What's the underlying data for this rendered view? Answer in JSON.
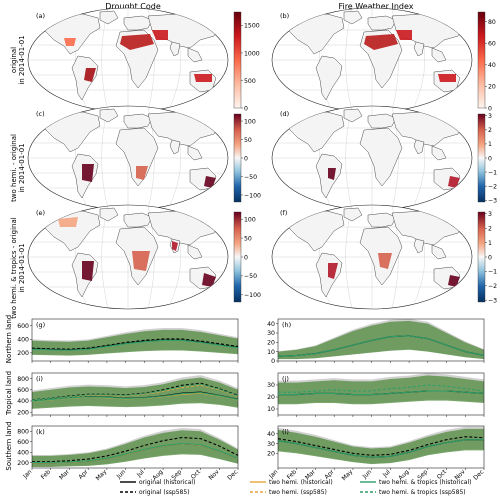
{
  "columns": [
    "Drought Code",
    "Fire Weather Index"
  ],
  "row_labels": [
    [
      "original",
      "in 2014-01-01"
    ],
    [
      "two hemi. - original",
      "in 2014-01-01"
    ],
    [
      "two hemi. & tropics - original",
      "in 2014-01-01"
    ]
  ],
  "panel_letters": [
    "(a)",
    "(b)",
    "(c)",
    "(d)",
    "(e)",
    "(f)",
    "(g)",
    "(h)",
    "(i)",
    "(j)",
    "(k)",
    "(l)"
  ],
  "colorbars": {
    "dc_original": {
      "ticks": [
        "1500",
        "1000",
        "500",
        "0"
      ],
      "colors": [
        "#fff5f0",
        "#fcbba1",
        "#fb6a4a",
        "#cb181d",
        "#67000d"
      ]
    },
    "fwi_original": {
      "ticks": [
        "80",
        "60",
        "40",
        "20",
        "0"
      ],
      "colors": [
        "#fff5f0",
        "#fcbba1",
        "#fb6a4a",
        "#cb181d",
        "#67000d"
      ]
    },
    "dc_diff": {
      "ticks": [
        "100",
        "50",
        "0",
        "−50",
        "−100"
      ],
      "colors": [
        "#053061",
        "#2166ac",
        "#92c5de",
        "#f7f7f7",
        "#f4a582",
        "#d6604d",
        "#67001f"
      ]
    },
    "fwi_diff": {
      "ticks": [
        "3",
        "2",
        "1",
        "0",
        "−1",
        "−2",
        "−3"
      ],
      "colors": [
        "#053061",
        "#2166ac",
        "#92c5de",
        "#f7f7f7",
        "#f4a582",
        "#d6604d",
        "#67001f"
      ]
    }
  },
  "land_color": "#f4f4f4",
  "ts_row_labels": [
    "Northern land",
    "Tropical land",
    "Southern land"
  ],
  "months": [
    "Jan",
    "Feb",
    "Mar",
    "Apr",
    "May",
    "Jun",
    "Jul",
    "Aug",
    "Sep",
    "Oct",
    "Nov",
    "Dec"
  ],
  "legend": [
    {
      "label": "original (historical)",
      "color": "#000000",
      "dash": "solid"
    },
    {
      "label": "original (ssp585)",
      "color": "#000000",
      "dash": "dashed"
    },
    {
      "label": "two hemi. (historical)",
      "color": "#e8a33d",
      "dash": "solid"
    },
    {
      "label": "two hemi. (ssp585)",
      "color": "#e8a33d",
      "dash": "dashed"
    },
    {
      "label": "two hemi. & tropics (historical)",
      "color": "#2e9e6a",
      "dash": "solid"
    },
    {
      "label": "two hemi. & tropics (ssp585)",
      "color": "#2e9e6a",
      "dash": "dashed"
    }
  ],
  "chart_data": [
    {
      "type": "line",
      "panel": "(g)",
      "variable": "Drought Code",
      "region": "Northern land",
      "yticks": [
        200,
        400,
        600
      ],
      "ylim": [
        80,
        700
      ],
      "series": [
        {
          "name": "original (historical)",
          "values": [
            260,
            250,
            245,
            260,
            300,
            340,
            370,
            390,
            390,
            360,
            320,
            280
          ]
        },
        {
          "name": "original (ssp585)",
          "values": [
            270,
            260,
            255,
            270,
            310,
            355,
            385,
            405,
            405,
            375,
            335,
            295
          ]
        },
        {
          "name": "two hemi. & tropics (historical)",
          "values": [
            255,
            245,
            240,
            255,
            295,
            335,
            365,
            385,
            385,
            355,
            315,
            275
          ]
        }
      ],
      "band": {
        "low": [
          170,
          165,
          160,
          170,
          190,
          210,
          225,
          235,
          235,
          220,
          200,
          180
        ],
        "high": [
          380,
          370,
          365,
          380,
          430,
          480,
          520,
          540,
          540,
          510,
          460,
          410
        ]
      }
    },
    {
      "type": "line",
      "panel": "(h)",
      "variable": "Fire Weather Index",
      "region": "Northern land",
      "yticks": [
        0,
        10,
        20,
        30,
        40
      ],
      "ylim": [
        0,
        45
      ],
      "series": [
        {
          "name": "original (historical)",
          "values": [
            5,
            6,
            8,
            12,
            17,
            22,
            26,
            27,
            24,
            17,
            10,
            6
          ]
        },
        {
          "name": "two hemi. & tropics (historical)",
          "values": [
            5,
            6,
            8,
            12,
            17,
            22,
            26,
            27,
            24,
            17,
            10,
            6
          ]
        }
      ],
      "band": {
        "low": [
          2,
          2,
          3,
          5,
          7,
          9,
          11,
          12,
          10,
          7,
          4,
          2
        ],
        "high": [
          10,
          12,
          16,
          24,
          32,
          38,
          42,
          43,
          40,
          30,
          20,
          12
        ]
      }
    },
    {
      "type": "line",
      "panel": "(i)",
      "variable": "Drought Code",
      "region": "Tropical land",
      "yticks": [
        200,
        400,
        600,
        800
      ],
      "ylim": [
        150,
        900
      ],
      "series": [
        {
          "name": "original (historical)",
          "values": [
            400,
            430,
            460,
            480,
            470,
            450,
            460,
            490,
            540,
            560,
            500,
            430
          ]
        },
        {
          "name": "original (ssp585)",
          "values": [
            420,
            450,
            490,
            520,
            520,
            510,
            540,
            600,
            680,
            720,
            620,
            500
          ]
        },
        {
          "name": "two hemi. (historical)",
          "values": [
            390,
            420,
            450,
            470,
            460,
            440,
            450,
            480,
            520,
            540,
            490,
            420
          ]
        },
        {
          "name": "two hemi. (ssp585)",
          "values": [
            410,
            440,
            470,
            500,
            500,
            490,
            520,
            570,
            640,
            680,
            600,
            480
          ]
        },
        {
          "name": "two hemi. & tropics (historical)",
          "values": [
            395,
            425,
            455,
            475,
            465,
            445,
            455,
            485,
            530,
            550,
            495,
            425
          ]
        },
        {
          "name": "two hemi. & tropics (ssp585)",
          "values": [
            415,
            445,
            480,
            510,
            510,
            500,
            530,
            585,
            660,
            700,
            610,
            490
          ]
        }
      ],
      "band": {
        "low": [
          260,
          280,
          300,
          310,
          300,
          290,
          300,
          320,
          350,
          360,
          330,
          280
        ],
        "high": [
          560,
          600,
          640,
          660,
          650,
          630,
          650,
          700,
          780,
          820,
          730,
          600
        ]
      }
    },
    {
      "type": "line",
      "panel": "(j)",
      "variable": "Fire Weather Index",
      "region": "Tropical land",
      "yticks": [
        10,
        20,
        30
      ],
      "ylim": [
        5,
        40
      ],
      "series": [
        {
          "name": "original (historical)",
          "values": [
            22,
            22,
            23,
            23,
            22,
            22,
            23,
            24,
            25,
            25,
            24,
            23
          ]
        },
        {
          "name": "two hemi. & tropics (historical)",
          "values": [
            22,
            22,
            23,
            23,
            22,
            22,
            23,
            24,
            25,
            25,
            24,
            23
          ]
        },
        {
          "name": "two hemi. & tropics (ssp585)",
          "values": [
            24,
            24,
            25,
            26,
            25,
            25,
            27,
            28,
            30,
            29,
            27,
            25
          ]
        }
      ],
      "band": {
        "low": [
          14,
          14,
          15,
          15,
          14,
          14,
          15,
          16,
          17,
          17,
          16,
          15
        ],
        "high": [
          32,
          32,
          33,
          34,
          33,
          33,
          35,
          36,
          38,
          37,
          35,
          33
        ]
      }
    },
    {
      "type": "line",
      "panel": "(k)",
      "variable": "Drought Code",
      "region": "Southern land",
      "yticks": [
        200,
        400,
        600,
        800
      ],
      "ylim": [
        100,
        900
      ],
      "series": [
        {
          "name": "original (historical)",
          "values": [
            200,
            200,
            210,
            230,
            280,
            360,
            450,
            520,
            560,
            540,
            420,
            280
          ]
        },
        {
          "name": "original (ssp585)",
          "values": [
            220,
            220,
            240,
            270,
            330,
            420,
            530,
            620,
            680,
            660,
            520,
            340
          ]
        },
        {
          "name": "two hemi. (historical)",
          "values": [
            200,
            200,
            210,
            230,
            280,
            360,
            450,
            520,
            560,
            540,
            420,
            280
          ]
        },
        {
          "name": "two hemi. & tropics (historical)",
          "values": [
            205,
            205,
            215,
            235,
            285,
            365,
            455,
            525,
            565,
            545,
            425,
            285
          ]
        }
      ],
      "band": {
        "low": [
          120,
          120,
          130,
          140,
          170,
          220,
          280,
          330,
          360,
          350,
          270,
          180
        ],
        "high": [
          330,
          330,
          350,
          380,
          450,
          560,
          680,
          770,
          820,
          800,
          640,
          450
        ]
      }
    },
    {
      "type": "line",
      "panel": "(l)",
      "variable": "Fire Weather Index",
      "region": "Southern land",
      "yticks": [
        20,
        30,
        40
      ],
      "ylim": [
        5,
        48
      ],
      "series": [
        {
          "name": "original (historical)",
          "values": [
            33,
            30,
            26,
            22,
            18,
            16,
            17,
            21,
            27,
            31,
            34,
            34
          ]
        },
        {
          "name": "original (ssp585)",
          "values": [
            35,
            32,
            28,
            24,
            20,
            18,
            19,
            23,
            29,
            34,
            37,
            36
          ]
        },
        {
          "name": "two hemi. & tropics (historical)",
          "values": [
            33,
            30,
            26,
            22,
            18,
            16,
            17,
            21,
            27,
            31,
            34,
            34
          ]
        }
      ],
      "band": {
        "low": [
          22,
          20,
          17,
          14,
          11,
          9,
          10,
          13,
          18,
          21,
          23,
          23
        ],
        "high": [
          44,
          41,
          37,
          32,
          27,
          25,
          26,
          31,
          37,
          42,
          45,
          45
        ]
      }
    }
  ]
}
